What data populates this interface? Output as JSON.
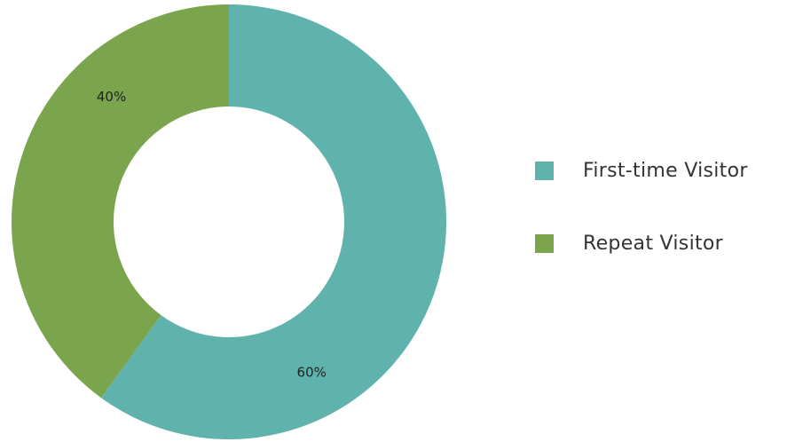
{
  "colors": {
    "first_time": "#5fb3ac",
    "repeat": "#7aa54d"
  },
  "chart_data": {
    "type": "pie",
    "variant": "donut",
    "categories": [
      "First-time Visitor",
      "Repeat Visitor"
    ],
    "values": [
      60,
      40
    ],
    "value_labels": [
      "60%",
      "40%"
    ],
    "colors": [
      "#5fb3ac",
      "#7aa54d"
    ],
    "legend_position": "right"
  },
  "legend": {
    "items": [
      {
        "label": "First-time Visitor",
        "color": "#5fb3ac"
      },
      {
        "label": "Repeat Visitor",
        "color": "#7aa54d"
      }
    ]
  }
}
